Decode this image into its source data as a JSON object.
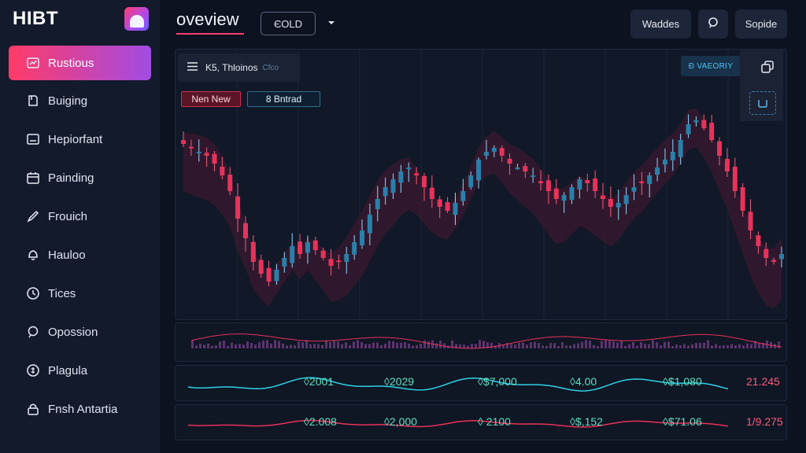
{
  "sidebar": {
    "brand": "HIBT",
    "items": [
      {
        "label": "Rustious",
        "icon": "chart-box-icon",
        "active": true
      },
      {
        "label": "Buiging",
        "icon": "book-icon"
      },
      {
        "label": "Hepiorfant",
        "icon": "card-icon"
      },
      {
        "label": "Painding",
        "icon": "calendar-icon"
      },
      {
        "label": "Frouich",
        "icon": "pen-icon"
      },
      {
        "label": "Hauloo",
        "icon": "bell-icon"
      },
      {
        "label": "Tices",
        "icon": "clock-icon"
      },
      {
        "label": "Opossion",
        "icon": "search-icon"
      },
      {
        "label": "Plagula",
        "icon": "coin-icon"
      },
      {
        "label": "Fnsh Antartia",
        "icon": "lock-icon"
      }
    ]
  },
  "header": {
    "title": "oveview",
    "select_value": "ЄOLD",
    "buttons": {
      "wallet": "Waddes",
      "settings": "Sopide"
    }
  },
  "chart": {
    "toolbar_label": "K5, Thloinos",
    "toolbar_sub": "Cfco",
    "tag_red": "Nen New",
    "tag_blue": "8 Bntrad",
    "live_badge": "Ɖ VAEORIY"
  },
  "colors": {
    "accent": "#ff3e6e",
    "up": "#38d6c0",
    "down": "#ff3e6e",
    "panel": "#111827"
  },
  "chart_data": [
    {
      "type": "candlestick",
      "title": "",
      "close": [
        66,
        65,
        64,
        63,
        61,
        58,
        54,
        47,
        42,
        36,
        33,
        31,
        34,
        37,
        40,
        38,
        41,
        39,
        37,
        35,
        36,
        38,
        41,
        44,
        48,
        52,
        55,
        57,
        59,
        60,
        58,
        55,
        52,
        50,
        49,
        51,
        54,
        58,
        62,
        64,
        65,
        63,
        61,
        60,
        59,
        58,
        56,
        54,
        52,
        53,
        55,
        57,
        56,
        54,
        52,
        50,
        51,
        53,
        55,
        56,
        58,
        60,
        62,
        64,
        67,
        71,
        72,
        70,
        67,
        63,
        59,
        54,
        49,
        44,
        40,
        37,
        36,
        38
      ]
    },
    {
      "type": "line",
      "values_labels": [
        "◊2001",
        "◊2029",
        "◊$7,000",
        "◊4.00",
        "◊$1,080",
        "21.245"
      ]
    },
    {
      "type": "line",
      "values_labels": [
        "◊2.008",
        "◊2,000",
        "◊ 2100",
        "◊$,152",
        "◊$71.06",
        "1/9.275"
      ]
    }
  ]
}
